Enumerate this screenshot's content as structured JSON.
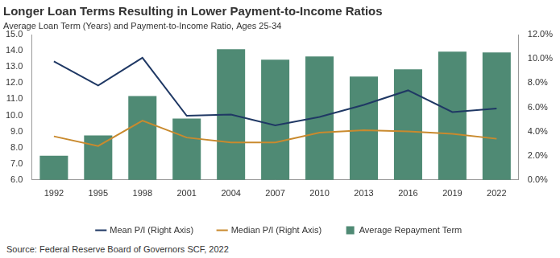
{
  "chart_data": {
    "type": "bar",
    "title": "Longer Loan Terms Resulting in Lower Payment-to-Income Ratios",
    "subtitle": "Average Loan Term (Years) and Payment-to-Income Ratio, Ages 25-34",
    "source": "Source: Federal Reserve Board of Governors SCF, 2022",
    "categories": [
      "1992",
      "1995",
      "1998",
      "2001",
      "2004",
      "2007",
      "2010",
      "2013",
      "2016",
      "2019",
      "2022"
    ],
    "series": [
      {
        "name": "Average Repayment Term",
        "type": "bar",
        "color": "#4f8a74",
        "values": [
          7.5,
          8.75,
          11.2,
          9.8,
          14.1,
          13.45,
          13.65,
          12.4,
          12.85,
          13.95,
          13.9
        ]
      },
      {
        "name": "Mean P/I (Right Axis)",
        "type": "line",
        "color": "#1f3864",
        "axis": "y2",
        "values": [
          9.8,
          7.8,
          10.1,
          5.3,
          5.4,
          4.5,
          5.2,
          6.2,
          7.4,
          5.6,
          5.9
        ]
      },
      {
        "name": "Median P/I (Right Axis)",
        "type": "line",
        "color": "#c98a2e",
        "axis": "y2",
        "values": [
          3.6,
          2.8,
          4.9,
          3.5,
          3.1,
          3.1,
          3.9,
          4.1,
          4.0,
          3.8,
          3.4
        ]
      }
    ],
    "ylim": [
      6,
      15
    ],
    "yticks": [
      {
        "value": 6,
        "label": "6.0"
      },
      {
        "value": 7,
        "label": "7.0"
      },
      {
        "value": 8,
        "label": "8.0"
      },
      {
        "value": 9,
        "label": "9.0"
      },
      {
        "value": 10,
        "label": "10.0"
      },
      {
        "value": 11,
        "label": "11.0"
      },
      {
        "value": 12,
        "label": "12.0"
      },
      {
        "value": 13,
        "label": "13.0"
      },
      {
        "value": 14,
        "label": "14.0"
      },
      {
        "value": 15,
        "label": "15.0"
      }
    ],
    "y2lim": [
      0,
      12
    ],
    "y2ticks": [
      {
        "value": 0,
        "label": "0.0%"
      },
      {
        "value": 2,
        "label": "2.0%"
      },
      {
        "value": 4,
        "label": "4.0%"
      },
      {
        "value": 6,
        "label": "6.0%"
      },
      {
        "value": 8,
        "label": "8.0%"
      },
      {
        "value": 10,
        "label": "10.0%"
      },
      {
        "value": 12,
        "label": "12.0%"
      }
    ],
    "grid": false,
    "legend": "bottom"
  }
}
